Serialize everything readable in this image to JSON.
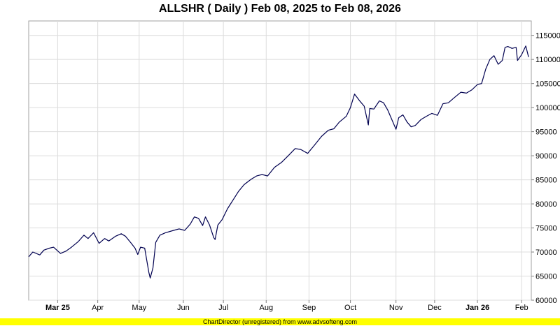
{
  "chart_data": {
    "type": "line",
    "title": "ALLSHR ( Daily ) Feb 08, 2025 to Feb 08, 2026",
    "xlabel": "",
    "ylabel": "",
    "ylim": [
      60000,
      118000
    ],
    "y_ticks": [
      60000,
      65000,
      70000,
      75000,
      80000,
      85000,
      90000,
      95000,
      100000,
      105000,
      110000,
      115000
    ],
    "y_tick_labels": [
      "60000",
      "65000",
      "70000",
      "75000",
      "80000",
      "85000",
      "90000",
      "95000",
      "100000",
      "105000",
      "110000",
      "115000"
    ],
    "xlim": [
      "2025-02-10",
      "2026-02-09"
    ],
    "x_ticks": [
      {
        "date": "2025-03-03",
        "label": "Mar 25",
        "bold": true
      },
      {
        "date": "2025-04-01",
        "label": "Apr",
        "bold": false
      },
      {
        "date": "2025-05-01",
        "label": "May",
        "bold": false
      },
      {
        "date": "2025-06-02",
        "label": "Jun",
        "bold": false
      },
      {
        "date": "2025-07-01",
        "label": "Jul",
        "bold": false
      },
      {
        "date": "2025-08-01",
        "label": "Aug",
        "bold": false
      },
      {
        "date": "2025-09-01",
        "label": "Sep",
        "bold": false
      },
      {
        "date": "2025-10-01",
        "label": "Oct",
        "bold": false
      },
      {
        "date": "2025-11-03",
        "label": "Nov",
        "bold": false
      },
      {
        "date": "2025-12-01",
        "label": "Dec",
        "bold": false
      },
      {
        "date": "2026-01-01",
        "label": "Jan 26",
        "bold": true
      },
      {
        "date": "2026-02-02",
        "label": "Feb",
        "bold": false
      }
    ],
    "grid": true,
    "line_color": "#000050",
    "series": [
      {
        "name": "",
        "points": [
          [
            "2025-02-10",
            69000
          ],
          [
            "2025-02-13",
            70000
          ],
          [
            "2025-02-18",
            69400
          ],
          [
            "2025-02-21",
            70400
          ],
          [
            "2025-02-25",
            70800
          ],
          [
            "2025-02-28",
            71000
          ],
          [
            "2025-03-05",
            69700
          ],
          [
            "2025-03-09",
            70200
          ],
          [
            "2025-03-13",
            71000
          ],
          [
            "2025-03-18",
            72200
          ],
          [
            "2025-03-22",
            73500
          ],
          [
            "2025-03-25",
            72800
          ],
          [
            "2025-03-29",
            74000
          ],
          [
            "2025-04-02",
            71800
          ],
          [
            "2025-04-06",
            72800
          ],
          [
            "2025-04-09",
            72300
          ],
          [
            "2025-04-14",
            73300
          ],
          [
            "2025-04-18",
            73800
          ],
          [
            "2025-04-21",
            73300
          ],
          [
            "2025-04-25",
            71900
          ],
          [
            "2025-04-28",
            70800
          ],
          [
            "2025-04-30",
            69500
          ],
          [
            "2025-05-02",
            71000
          ],
          [
            "2025-05-05",
            70800
          ],
          [
            "2025-05-08",
            65800
          ],
          [
            "2025-05-09",
            64600
          ],
          [
            "2025-05-11",
            66700
          ],
          [
            "2025-05-13",
            72000
          ],
          [
            "2025-05-16",
            73500
          ],
          [
            "2025-05-20",
            74000
          ],
          [
            "2025-05-26",
            74500
          ],
          [
            "2025-05-30",
            74800
          ],
          [
            "2025-06-03",
            74500
          ],
          [
            "2025-06-07",
            75800
          ],
          [
            "2025-06-10",
            77300
          ],
          [
            "2025-06-13",
            77000
          ],
          [
            "2025-06-16",
            75500
          ],
          [
            "2025-06-18",
            77300
          ],
          [
            "2025-06-21",
            75600
          ],
          [
            "2025-06-24",
            73000
          ],
          [
            "2025-06-25",
            72600
          ],
          [
            "2025-06-27",
            75600
          ],
          [
            "2025-06-30",
            76700
          ],
          [
            "2025-07-04",
            79000
          ],
          [
            "2025-07-08",
            80800
          ],
          [
            "2025-07-12",
            82600
          ],
          [
            "2025-07-16",
            84000
          ],
          [
            "2025-07-21",
            85100
          ],
          [
            "2025-07-25",
            85800
          ],
          [
            "2025-07-29",
            86100
          ],
          [
            "2025-08-02",
            85800
          ],
          [
            "2025-08-07",
            87600
          ],
          [
            "2025-08-12",
            88600
          ],
          [
            "2025-08-17",
            90000
          ],
          [
            "2025-08-22",
            91500
          ],
          [
            "2025-08-26",
            91300
          ],
          [
            "2025-08-31",
            90500
          ],
          [
            "2025-09-05",
            92200
          ],
          [
            "2025-09-10",
            94000
          ],
          [
            "2025-09-15",
            95300
          ],
          [
            "2025-09-19",
            95600
          ],
          [
            "2025-09-23",
            97000
          ],
          [
            "2025-09-28",
            98200
          ],
          [
            "2025-10-01",
            100000
          ],
          [
            "2025-10-04",
            102800
          ],
          [
            "2025-10-08",
            101300
          ],
          [
            "2025-10-11",
            100300
          ],
          [
            "2025-10-14",
            96400
          ],
          [
            "2025-10-15",
            99800
          ],
          [
            "2025-10-18",
            99700
          ],
          [
            "2025-10-22",
            101400
          ],
          [
            "2025-10-25",
            101000
          ],
          [
            "2025-10-28",
            99500
          ],
          [
            "2025-10-31",
            97500
          ],
          [
            "2025-11-03",
            95500
          ],
          [
            "2025-11-05",
            97900
          ],
          [
            "2025-11-08",
            98500
          ],
          [
            "2025-11-11",
            97000
          ],
          [
            "2025-11-14",
            96000
          ],
          [
            "2025-11-17",
            96300
          ],
          [
            "2025-11-21",
            97500
          ],
          [
            "2025-11-25",
            98200
          ],
          [
            "2025-11-29",
            98800
          ],
          [
            "2025-12-03",
            98400
          ],
          [
            "2025-12-07",
            100800
          ],
          [
            "2025-12-11",
            101000
          ],
          [
            "2025-12-15",
            102000
          ],
          [
            "2025-12-20",
            103200
          ],
          [
            "2025-12-24",
            103000
          ],
          [
            "2025-12-28",
            103700
          ],
          [
            "2026-01-01",
            104800
          ],
          [
            "2026-01-04",
            105000
          ],
          [
            "2026-01-07",
            108000
          ],
          [
            "2026-01-10",
            110000
          ],
          [
            "2026-01-13",
            110800
          ],
          [
            "2026-01-16",
            109000
          ],
          [
            "2026-01-19",
            109800
          ],
          [
            "2026-01-21",
            112500
          ],
          [
            "2026-01-23",
            112700
          ],
          [
            "2026-01-26",
            112300
          ],
          [
            "2026-01-29",
            112500
          ],
          [
            "2026-01-30",
            109800
          ],
          [
            "2026-02-02",
            111000
          ],
          [
            "2026-02-05",
            112800
          ],
          [
            "2026-02-07",
            110500
          ]
        ]
      }
    ]
  },
  "footer": {
    "text": "ChartDirector (unregistered) from www.advsofteng.com",
    "bar_color": "#ffff00"
  }
}
